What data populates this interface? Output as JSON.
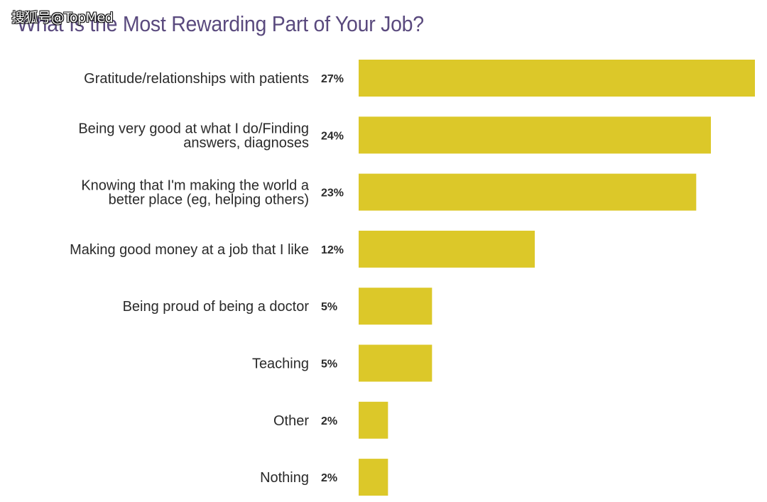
{
  "watermark": "搜狐号@TopMed",
  "chart_data": {
    "type": "bar",
    "orientation": "horizontal",
    "title": "What Is the Most Rewarding Part of Your Job?",
    "categories": [
      "Gratitude/relationships with patients",
      "Being very good at what I do/Finding answers, diagnoses",
      "Knowing that I'm making the world a better place (eg, helping others)",
      "Making good money at a job that I like",
      "Being proud of being a doctor",
      "Teaching",
      "Other",
      "Nothing"
    ],
    "category_lines": [
      [
        "Gratitude/relationships with patients"
      ],
      [
        "Being very good at what I do/Finding",
        "answers, diagnoses"
      ],
      [
        "Knowing that I'm making the world a",
        "better place (eg, helping others)"
      ],
      [
        "Making good money at a job that I like"
      ],
      [
        "Being proud of being a doctor"
      ],
      [
        "Teaching"
      ],
      [
        "Other"
      ],
      [
        "Nothing"
      ]
    ],
    "values": [
      27,
      24,
      23,
      12,
      5,
      5,
      2,
      2
    ],
    "value_labels": [
      "27%",
      "24%",
      "23%",
      "12%",
      "5%",
      "5%",
      "2%",
      "2%"
    ],
    "unit": "%",
    "xlim": [
      0,
      27
    ],
    "bar_color": "#dcc829",
    "grid": false,
    "legend": "none"
  }
}
